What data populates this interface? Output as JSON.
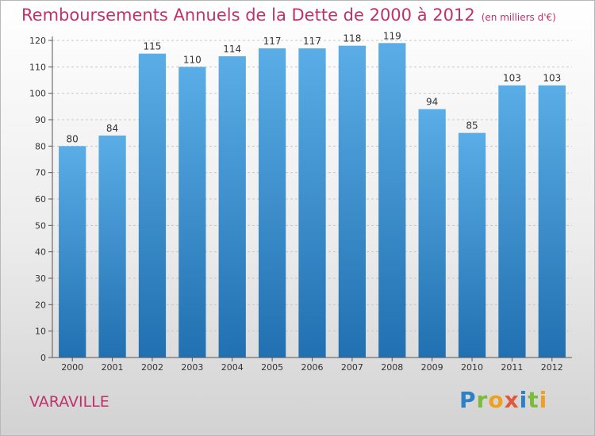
{
  "header": {
    "title": "Remboursements Annuels de la Dette de 2000 à 2012",
    "unit": "(en milliers d'€)"
  },
  "footer": {
    "place": "VARAVILLE",
    "logo": "Proxiti"
  },
  "colors": {
    "title": "#c0306a",
    "bar_top": "#5aade6",
    "bar_bottom": "#2170b1"
  },
  "chart_data": {
    "type": "bar",
    "title": "Remboursements Annuels de la Dette de 2000 à 2012",
    "categories": [
      "2000",
      "2001",
      "2002",
      "2003",
      "2004",
      "2005",
      "2006",
      "2007",
      "2008",
      "2009",
      "2010",
      "2011",
      "2012"
    ],
    "values": [
      80,
      84,
      115,
      110,
      114,
      117,
      117,
      118,
      119,
      94,
      85,
      103,
      103
    ],
    "ylim": [
      0,
      120
    ],
    "yticks": [
      0,
      10,
      20,
      30,
      40,
      50,
      60,
      70,
      80,
      90,
      100,
      110,
      120
    ],
    "grid": true,
    "data_labels": true
  }
}
